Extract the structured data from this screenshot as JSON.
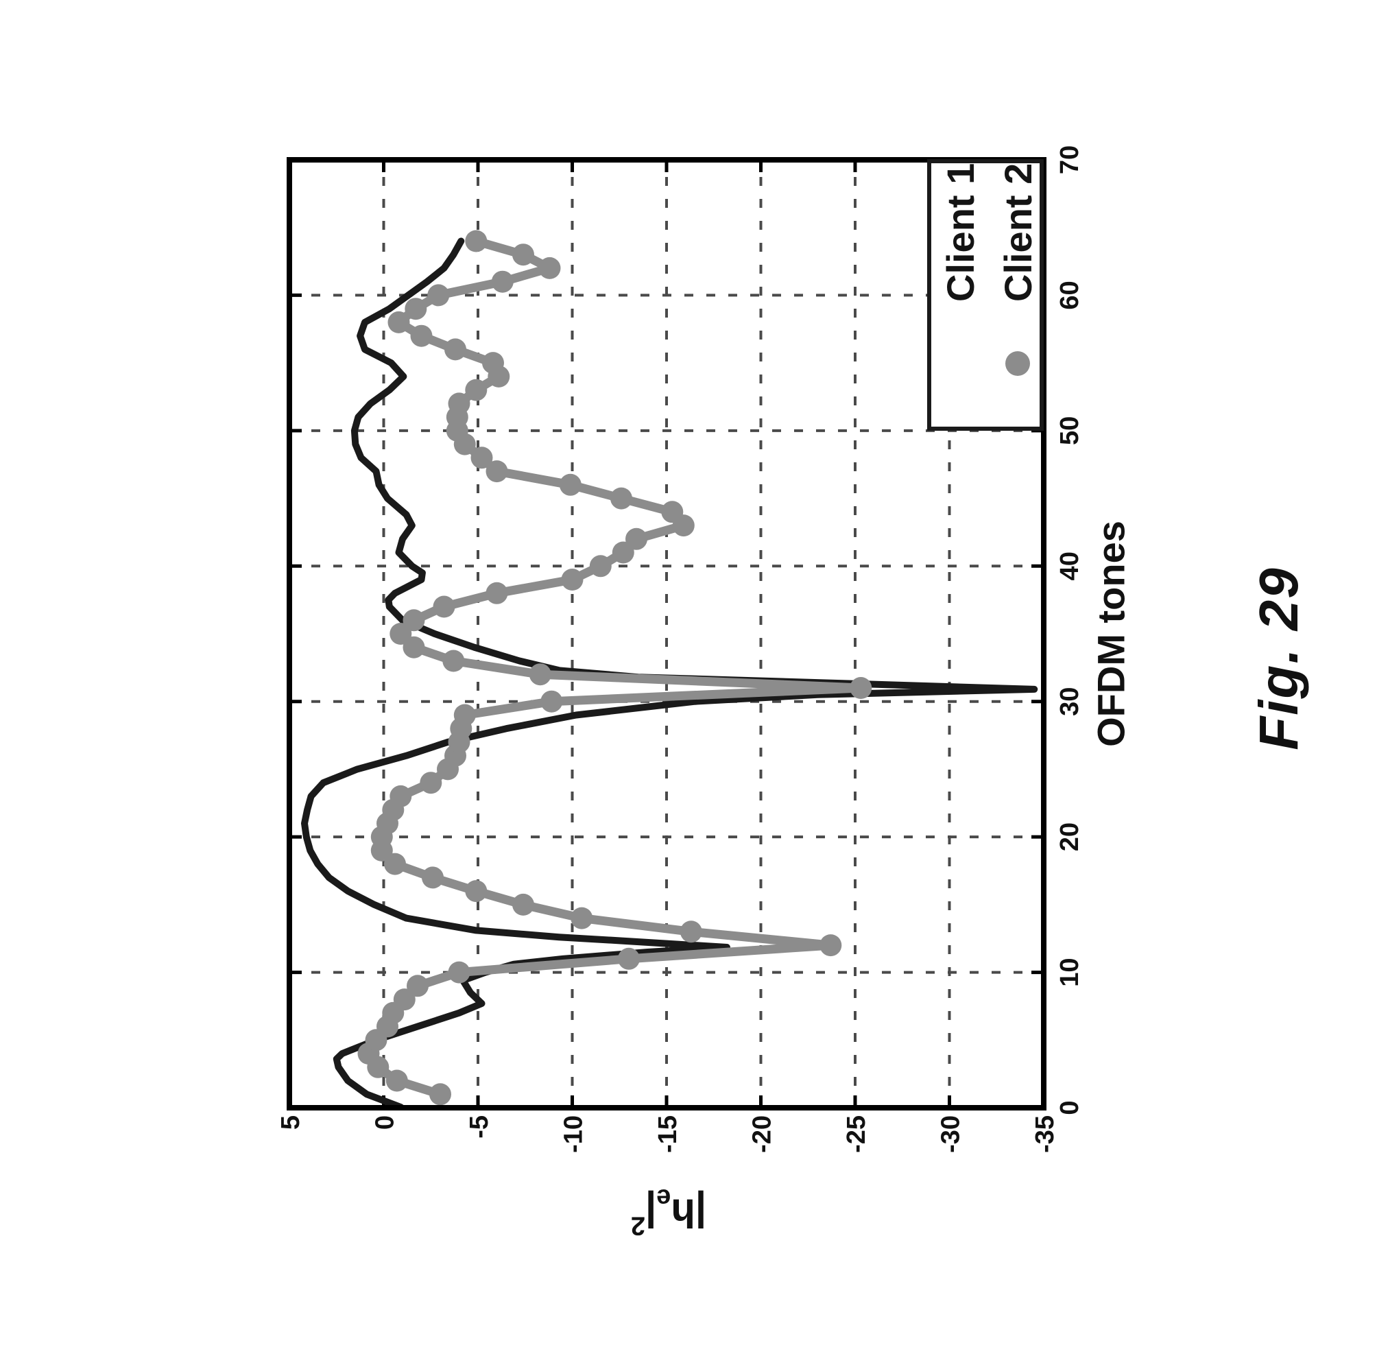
{
  "figure": {
    "caption": "Fig. 29",
    "background_color": "#ffffff",
    "rotation_deg": -90
  },
  "axis": {
    "xlabel": "OFDM tones",
    "ylabel_p1": "|h",
    "ylabel_sub": "e",
    "ylabel_p2": "|",
    "ylabel_sup": "2"
  },
  "chart_data": {
    "type": "line",
    "title": "",
    "xlabel": "OFDM tones",
    "ylabel": "|h_e|^2",
    "xlim": [
      0,
      70
    ],
    "ylim": [
      -35,
      5
    ],
    "xticks": [
      0,
      10,
      20,
      30,
      40,
      50,
      60,
      70
    ],
    "yticks": [
      5,
      0,
      -5,
      -10,
      -15,
      -20,
      -25,
      -30,
      -35
    ],
    "grid": true,
    "grid_style": "dashed",
    "grid_color": "#4a4a4a",
    "axis_color": "#000000",
    "legend_position": "southeast",
    "series": [
      {
        "name": "Client 1",
        "color": "#1a1a1a",
        "marker": "none",
        "line_width": 10,
        "points": [
          [
            0.05,
            -0.9
          ],
          [
            1,
            0.9
          ],
          [
            2,
            1.9
          ],
          [
            3,
            2.4
          ],
          [
            3.6,
            2.5
          ],
          [
            4,
            2.2
          ],
          [
            5,
            0.4
          ],
          [
            6,
            -1.8
          ],
          [
            7,
            -4.0
          ],
          [
            7.7,
            -5.2
          ],
          [
            8.5,
            -4.6
          ],
          [
            9.4,
            -4.2
          ],
          [
            10,
            -5.4
          ],
          [
            10.6,
            -6.9
          ],
          [
            11,
            -9.5
          ],
          [
            11.5,
            -14
          ],
          [
            11.85,
            -18.2
          ],
          [
            12.3,
            -13
          ],
          [
            12.6,
            -9.3
          ],
          [
            13.1,
            -4.9
          ],
          [
            14,
            -1.2
          ],
          [
            15,
            0.5
          ],
          [
            16,
            1.9
          ],
          [
            17,
            2.9
          ],
          [
            18,
            3.5
          ],
          [
            19,
            3.9
          ],
          [
            20,
            4.1
          ],
          [
            21,
            4.2
          ],
          [
            22,
            4.05
          ],
          [
            23,
            3.85
          ],
          [
            24,
            3.2
          ],
          [
            25,
            1.4
          ],
          [
            26,
            -1.2
          ],
          [
            27,
            -3.4
          ],
          [
            28,
            -6.5
          ],
          [
            29,
            -10.2
          ],
          [
            30,
            -16.5
          ],
          [
            30.5,
            -23
          ],
          [
            30.9,
            -34.5
          ],
          [
            31.4,
            -23
          ],
          [
            31.8,
            -13.5
          ],
          [
            32.3,
            -9.3
          ],
          [
            33,
            -7.2
          ],
          [
            34,
            -4.8
          ],
          [
            35,
            -2.7
          ],
          [
            36,
            -1.0
          ],
          [
            37,
            -0.3
          ],
          [
            37.5,
            -0.25
          ],
          [
            38,
            -0.6
          ],
          [
            39,
            -2.0
          ],
          [
            39.5,
            -2.05
          ],
          [
            40,
            -1.5
          ],
          [
            41,
            -0.8
          ],
          [
            42,
            -1.0
          ],
          [
            43,
            -1.5
          ],
          [
            43.8,
            -1.2
          ],
          [
            45,
            -0.2
          ],
          [
            46,
            0.25
          ],
          [
            47,
            0.4
          ],
          [
            48,
            1.2
          ],
          [
            49,
            1.5
          ],
          [
            50,
            1.55
          ],
          [
            51,
            1.35
          ],
          [
            52,
            0.7
          ],
          [
            53,
            -0.3
          ],
          [
            54,
            -1.05
          ],
          [
            55,
            -0.4
          ],
          [
            56,
            1.0
          ],
          [
            57,
            1.25
          ],
          [
            58,
            1.0
          ],
          [
            59,
            -0.3
          ],
          [
            60,
            -1.3
          ],
          [
            61,
            -2.3
          ],
          [
            62,
            -3.2
          ],
          [
            63,
            -3.7
          ],
          [
            64,
            -4.1
          ]
        ]
      },
      {
        "name": "Client 2",
        "color": "#8c8c8c",
        "marker": "circle",
        "marker_radius": 16,
        "line_width": 13,
        "points": [
          [
            1,
            -3.0
          ],
          [
            2,
            -0.7
          ],
          [
            3,
            0.3
          ],
          [
            4,
            0.8
          ],
          [
            5,
            0.4
          ],
          [
            6,
            -0.2
          ],
          [
            7,
            -0.5
          ],
          [
            8,
            -1.1
          ],
          [
            9,
            -1.8
          ],
          [
            10,
            -4.0
          ],
          [
            11,
            -13.0
          ],
          [
            12,
            -23.7
          ],
          [
            13,
            -16.3
          ],
          [
            14,
            -10.5
          ],
          [
            15,
            -7.4
          ],
          [
            16,
            -4.9
          ],
          [
            17,
            -2.6
          ],
          [
            18,
            -0.6
          ],
          [
            19,
            0.1
          ],
          [
            20,
            0.1
          ],
          [
            21,
            -0.2
          ],
          [
            22,
            -0.5
          ],
          [
            23,
            -0.9
          ],
          [
            24,
            -2.5
          ],
          [
            25,
            -3.4
          ],
          [
            26,
            -3.8
          ],
          [
            27,
            -4.0
          ],
          [
            28,
            -4.1
          ],
          [
            29,
            -4.3
          ],
          [
            30,
            -8.9
          ],
          [
            31,
            -25.3
          ],
          [
            32,
            -8.3
          ],
          [
            33,
            -3.7
          ],
          [
            34,
            -1.6
          ],
          [
            35,
            -0.9
          ],
          [
            36,
            -1.6
          ],
          [
            37,
            -3.2
          ],
          [
            38,
            -6.0
          ],
          [
            39,
            -10.0
          ],
          [
            40,
            -11.5
          ],
          [
            41,
            -12.7
          ],
          [
            42,
            -13.4
          ],
          [
            43,
            -15.9
          ],
          [
            44,
            -15.3
          ],
          [
            45,
            -12.6
          ],
          [
            46,
            -9.9
          ],
          [
            47,
            -6.0
          ],
          [
            48,
            -5.2
          ],
          [
            49,
            -4.3
          ],
          [
            50,
            -3.9
          ],
          [
            51,
            -3.9
          ],
          [
            52,
            -4.0
          ],
          [
            53,
            -4.9
          ],
          [
            54,
            -6.1
          ],
          [
            55,
            -5.8
          ],
          [
            56,
            -3.8
          ],
          [
            57,
            -2.0
          ],
          [
            58,
            -0.8
          ],
          [
            59,
            -1.7
          ],
          [
            60,
            -2.9
          ],
          [
            61,
            -6.3
          ],
          [
            62,
            -8.8
          ],
          [
            63,
            -7.4
          ],
          [
            64,
            -4.9
          ]
        ]
      }
    ]
  }
}
